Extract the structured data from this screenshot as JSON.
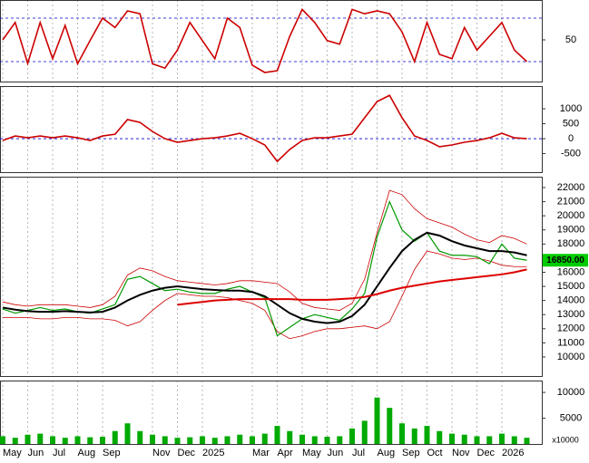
{
  "chart_data": [
    {
      "type": "line",
      "ylim": [
        -7.5,
        105
      ],
      "yticks": [
        50
      ],
      "hlines": [
        20,
        80
      ],
      "hline_color": "#0000cc",
      "series": [
        {
          "color": "#cc0000",
          "width": 1.6,
          "values": [
            50,
            74,
            17.5,
            74,
            24,
            70,
            17,
            49,
            80,
            67,
            90,
            86,
            17,
            11,
            36,
            74,
            49,
            24,
            80,
            67,
            15,
            5,
            7.5,
            55,
            92,
            74,
            49,
            44,
            92,
            86,
            90,
            86,
            61,
            20,
            74,
            30,
            24,
            67,
            36,
            55,
            74,
            36,
            20
          ]
        }
      ]
    },
    {
      "type": "line",
      "ylim": [
        -1120,
        1760
      ],
      "yticks": [
        -500,
        0,
        500,
        1000
      ],
      "hlines": [
        0
      ],
      "hline_color": "#0000cc",
      "series": [
        {
          "color": "#cc0000",
          "width": 1.6,
          "values": [
            -60,
            90,
            30,
            90,
            30,
            90,
            30,
            -60,
            90,
            150,
            640,
            545,
            240,
            0,
            -120,
            -60,
            0,
            30,
            90,
            180,
            0,
            -210,
            -760,
            -360,
            -60,
            30,
            30,
            90,
            150,
            700,
            1240,
            1450,
            700,
            90,
            -60,
            -270,
            -210,
            -120,
            -60,
            30,
            180,
            30,
            0
          ]
        }
      ]
    },
    {
      "type": "line",
      "ylim": [
        8650,
        22770
      ],
      "yticks": [
        10000,
        11000,
        12000,
        13000,
        14000,
        15000,
        16000,
        17000,
        18000,
        19000,
        20000,
        21000,
        22000
      ],
      "last_price": {
        "value": 16850,
        "label": "16850.00"
      },
      "last_price_color": "#00cc00",
      "series": [
        {
          "color": "#cc0000",
          "width": 0.8,
          "values": [
            13900,
            13700,
            13600,
            13700,
            13700,
            13700,
            13600,
            13500,
            13700,
            14300,
            15800,
            16300,
            16100,
            15700,
            15400,
            15300,
            15200,
            15100,
            15200,
            15400,
            15400,
            15300,
            15200,
            14600,
            13800,
            13500,
            13400,
            13300,
            13800,
            15500,
            18800,
            21800,
            21500,
            20500,
            19800,
            19500,
            19200,
            18700,
            18300,
            18100,
            18600,
            18400,
            18000
          ]
        },
        {
          "color": "#cc0000",
          "width": 0.8,
          "values": [
            12800,
            12800,
            12800,
            12700,
            12700,
            12800,
            12800,
            12700,
            12700,
            12600,
            12200,
            12500,
            13300,
            14000,
            14500,
            14400,
            14300,
            14300,
            14200,
            14000,
            13800,
            13300,
            11800,
            11300,
            11500,
            11800,
            12000,
            12000,
            12100,
            12200,
            12000,
            12500,
            14300,
            16200,
            17500,
            17300,
            17000,
            16900,
            17000,
            16800,
            16500,
            16400,
            16400
          ]
        },
        {
          "color": "#009900",
          "width": 1.2,
          "values": [
            13400,
            13100,
            13300,
            13500,
            13300,
            13400,
            13200,
            13100,
            13400,
            13700,
            15500,
            15700,
            15200,
            14700,
            14800,
            14600,
            14500,
            14500,
            14800,
            15000,
            14600,
            14200,
            11500,
            12100,
            12700,
            13000,
            12800,
            12600,
            13400,
            14500,
            18500,
            21000,
            19000,
            18200,
            18800,
            17500,
            17200,
            17200,
            17100,
            16600,
            18000,
            17000,
            16850
          ]
        },
        {
          "color": "#000000",
          "width": 2,
          "values": [
            13500,
            13350,
            13250,
            13200,
            13200,
            13250,
            13200,
            13150,
            13200,
            13500,
            14000,
            14400,
            14700,
            14900,
            15000,
            14900,
            14800,
            14750,
            14700,
            14700,
            14600,
            14300,
            13700,
            13100,
            12700,
            12500,
            12400,
            12500,
            12900,
            13700,
            15000,
            16300,
            17500,
            18300,
            18800,
            18600,
            18200,
            17900,
            17700,
            17500,
            17500,
            17400,
            17200
          ]
        },
        {
          "color": "#dd0000",
          "width": 2,
          "values": [
            null,
            null,
            null,
            null,
            null,
            null,
            null,
            null,
            null,
            null,
            null,
            null,
            null,
            null,
            13700,
            13800,
            13900,
            14000,
            14050,
            14100,
            14100,
            14100,
            14100,
            14100,
            14050,
            14050,
            14050,
            14100,
            14150,
            14250,
            14450,
            14700,
            14900,
            15050,
            15200,
            15350,
            15450,
            15550,
            15650,
            15750,
            15850,
            16000,
            16200
          ]
        }
      ]
    },
    {
      "type": "bar",
      "ylim": [
        0,
        12300
      ],
      "yticks": [
        5000,
        10000
      ],
      "unit_label": "x10000",
      "color": "#00aa00",
      "values": [
        1500,
        1200,
        1800,
        2000,
        1500,
        1200,
        1500,
        1300,
        1400,
        2500,
        4000,
        2500,
        1800,
        1500,
        1200,
        1300,
        1500,
        1200,
        1500,
        1800,
        1500,
        2000,
        3500,
        2500,
        1800,
        1500,
        1400,
        1500,
        3000,
        4500,
        9000,
        7000,
        4000,
        3000,
        3500,
        2500,
        2000,
        1800,
        1500,
        1500,
        2000,
        1500,
        1200
      ],
      "categories": [
        "May",
        null,
        "Jun",
        null,
        "Jul",
        null,
        "Aug",
        null,
        "Sep",
        null,
        null,
        null,
        "Nov",
        null,
        "Dec",
        null,
        "2025",
        null,
        null,
        null,
        "Mar",
        null,
        "Apr",
        null,
        "May",
        null,
        "Jun",
        null,
        "Jul",
        null,
        "Aug",
        null,
        "Sep",
        null,
        "Oct",
        null,
        "Nov",
        null,
        "Dec",
        null,
        "2026",
        null,
        null
      ]
    }
  ]
}
